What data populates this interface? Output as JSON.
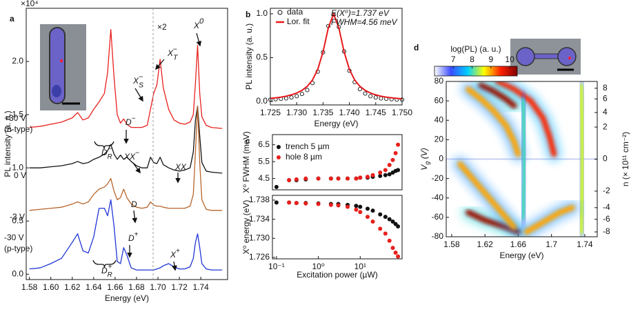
{
  "chart_data": [
    {
      "type": "line",
      "panel_label": "a",
      "y_multiplier": "×10⁴",
      "xlabel": "Energy (eV)",
      "ylabel": "PL intensity (a. u.)",
      "xlim": [
        1.577,
        1.765
      ],
      "xticks": [
        1.58,
        {
          "value": 1.6,
          "label": "1.60"
        },
        1.62,
        1.64,
        1.66,
        1.68,
        {
          "value": 1.7,
          "label": "1.70"
        },
        1.72,
        1.74
      ],
      "ylim": [
        -0.05,
        2.5
      ],
      "yticks": [
        {
          "value": 0,
          "label": "0.0"
        },
        0.5,
        {
          "value": 1,
          "label": "1.0"
        },
        1.5,
        {
          "value": 2,
          "label": "2.0"
        }
      ],
      "x": [
        1.58,
        1.59,
        1.6,
        1.61,
        1.62,
        1.625,
        1.63,
        1.635,
        1.64,
        1.645,
        1.65,
        1.653,
        1.656,
        1.659,
        1.662,
        1.665,
        1.668,
        1.671,
        1.675,
        1.68,
        1.685,
        1.69,
        1.693,
        1.696,
        1.699,
        1.702,
        1.705,
        1.71,
        1.715,
        1.72,
        1.725,
        1.73,
        1.733,
        1.735,
        1.737,
        1.739,
        1.741,
        1.745,
        1.75,
        1.76
      ],
      "series": [
        {
          "name": "+30 V",
          "color": "#e8201c",
          "values": [
            1.38,
            1.39,
            1.41,
            1.43,
            1.47,
            1.52,
            1.45,
            1.47,
            1.55,
            1.62,
            1.7,
            1.9,
            2.3,
            1.85,
            1.5,
            1.42,
            1.46,
            1.41,
            1.38,
            1.38,
            1.38,
            1.4,
            1.55,
            1.7,
            1.78,
            2.02,
            1.75,
            1.55,
            1.45,
            1.42,
            1.41,
            1.43,
            1.5,
            1.8,
            2.15,
            1.7,
            1.48,
            1.4,
            1.38,
            1.37
          ]
        },
        {
          "name": "0 V",
          "color": "#111111",
          "values": [
            1.0,
            1.0,
            1.01,
            1.02,
            1.04,
            1.06,
            1.04,
            1.05,
            1.08,
            1.1,
            1.13,
            1.16,
            1.22,
            1.13,
            1.08,
            1.12,
            1.08,
            1.1,
            1.06,
            1.02,
            1.0,
            1.0,
            1.1,
            1.05,
            1.04,
            1.1,
            1.03,
            1.0,
            0.98,
            0.97,
            0.98,
            1.0,
            1.15,
            1.45,
            1.58,
            1.3,
            1.05,
            0.97,
            0.96,
            0.95
          ]
        },
        {
          "name": "-3 V",
          "color": "#b8642a",
          "values": [
            0.6,
            0.61,
            0.62,
            0.63,
            0.66,
            0.68,
            0.66,
            0.68,
            0.75,
            0.8,
            0.82,
            0.85,
            0.9,
            0.78,
            0.7,
            0.72,
            0.8,
            0.72,
            0.66,
            0.63,
            0.62,
            0.63,
            0.68,
            0.65,
            0.64,
            0.64,
            0.63,
            0.62,
            0.62,
            0.62,
            0.62,
            0.64,
            0.75,
            1.15,
            1.58,
            1.05,
            0.7,
            0.61,
            0.6,
            0.6
          ]
        },
        {
          "name": "-30 V",
          "color": "#1f35d6",
          "values": [
            0.05,
            0.06,
            0.1,
            0.15,
            0.3,
            0.38,
            0.22,
            0.2,
            0.35,
            0.62,
            0.62,
            0.55,
            0.7,
            0.45,
            0.12,
            0.1,
            0.25,
            0.18,
            0.06,
            0.04,
            0.04,
            0.04,
            0.04,
            0.04,
            0.05,
            0.06,
            0.08,
            0.1,
            0.07,
            0.05,
            0.05,
            0.07,
            0.15,
            0.3,
            0.38,
            0.25,
            0.1,
            0.05,
            0.04,
            0.04
          ]
        }
      ],
      "annotations": [
        {
          "text": "×2"
        },
        {
          "text": "X",
          "sup": "0"
        },
        {
          "text": "X",
          "sub": "T",
          "sup": "−"
        },
        {
          "text": "X",
          "sub": "S",
          "sup": "−"
        },
        {
          "text": "D",
          "sup": "−"
        },
        {
          "text": "D",
          "sub": "R",
          "sup": "−"
        },
        {
          "text": "XX",
          "sup": "−"
        },
        {
          "text": "XX"
        },
        {
          "text": "D"
        },
        {
          "text": "D",
          "sup": "+"
        },
        {
          "text": "X",
          "sup": "+"
        },
        {
          "text": "D",
          "sub": "R",
          "sup": "+"
        },
        {
          "text": "(n-type)"
        },
        {
          "text": "(p-type)"
        }
      ]
    },
    {
      "type": "line",
      "panel_label": "b",
      "xlabel": "Energy (eV)",
      "ylabel": "PL intensity (a. u.)",
      "xlim": [
        1.725,
        1.75
      ],
      "xticks": [
        1.725,
        {
          "value": 1.73,
          "label": "1.730"
        },
        1.735,
        {
          "value": 1.74,
          "label": "1.740"
        },
        1.745,
        {
          "value": 1.75,
          "label": "1.750"
        }
      ],
      "ylim": [
        -0.04,
        1.063
      ],
      "yticks": [
        {
          "value": 0,
          "label": "0.0"
        },
        0.5,
        {
          "value": 1,
          "label": "1.0"
        }
      ],
      "x": [
        1.725,
        1.726,
        1.727,
        1.728,
        1.729,
        1.73,
        1.731,
        1.732,
        1.733,
        1.734,
        1.735,
        1.736,
        1.737,
        1.738,
        1.739,
        1.74,
        1.741,
        1.742,
        1.743,
        1.744,
        1.745,
        1.746,
        1.747,
        1.748,
        1.749,
        1.75
      ],
      "series": [
        {
          "name": "data",
          "color": "#111111",
          "marker": "circle",
          "values": [
            0.02,
            0.025,
            0.03,
            0.035,
            0.045,
            0.06,
            0.085,
            0.13,
            0.21,
            0.34,
            0.56,
            0.86,
            0.99,
            0.85,
            0.57,
            0.35,
            0.22,
            0.14,
            0.09,
            0.06,
            0.045,
            0.035,
            0.03,
            0.025,
            0.02,
            0.02
          ]
        },
        {
          "name": "Lor. fit",
          "color": "#e8181c",
          "values": [
            0.035,
            0.041,
            0.049,
            0.06,
            0.075,
            0.096,
            0.126,
            0.172,
            0.245,
            0.366,
            0.565,
            0.839,
            1.0,
            0.839,
            0.565,
            0.366,
            0.245,
            0.172,
            0.126,
            0.096,
            0.075,
            0.06,
            0.049,
            0.041,
            0.035,
            0.03
          ]
        }
      ],
      "annotations": [
        {
          "text": "E(X⁰)=1.737 eV"
        },
        {
          "text": "FWHM=4.56 meV"
        }
      ]
    },
    {
      "type": "scatter",
      "panel_label": "c",
      "xscale": "log",
      "ylabel": "X⁰ FWHM (meV)",
      "xlim": [
        0.08,
        100
      ],
      "ylim": [
        3.83,
        7.1
      ],
      "yticks": [
        4.5,
        5.5,
        6.5
      ],
      "x": [
        0.1,
        0.2,
        0.3,
        0.5,
        1,
        2,
        3,
        5,
        8,
        10,
        15,
        20,
        30,
        40,
        50,
        60,
        70,
        80
      ],
      "series": [
        {
          "name": "trench 5 µm",
          "color": "#111111",
          "values": [
            4.0,
            4.4,
            4.4,
            4.45,
            4.5,
            4.5,
            4.5,
            4.5,
            4.5,
            4.55,
            4.55,
            4.6,
            4.65,
            4.7,
            4.75,
            4.85,
            4.95,
            5.0
          ]
        },
        {
          "name": "hole 8 µm",
          "color": "#e8201c",
          "values": [
            null,
            4.4,
            4.45,
            4.5,
            4.5,
            4.5,
            4.5,
            4.5,
            4.5,
            4.55,
            4.6,
            4.7,
            4.85,
            5.0,
            5.3,
            5.6,
            6.0,
            6.5
          ]
        }
      ]
    },
    {
      "type": "scatter",
      "xscale": "log",
      "xlabel": "Excitation power (µW)",
      "ylabel": "X⁰ energy (eV)",
      "xlim": [
        0.08,
        100
      ],
      "xticks": [
        {
          "value": 0.1,
          "label": "10⁻¹"
        },
        {
          "value": 1,
          "label": "10⁰"
        },
        {
          "value": 10,
          "label": "10¹"
        }
      ],
      "ylim": [
        1.7257,
        1.739
      ],
      "yticks": [
        1.726,
        {
          "value": 1.73,
          "label": "1.730"
        },
        1.734,
        1.738
      ],
      "x": [
        0.1,
        0.2,
        0.3,
        0.5,
        1,
        2,
        3,
        5,
        8,
        10,
        15,
        20,
        30,
        40,
        50,
        60,
        70,
        80
      ],
      "series": [
        {
          "color": "#111111",
          "values": [
            1.7375,
            1.7375,
            1.7374,
            1.7374,
            1.7373,
            1.7372,
            1.7372,
            1.737,
            1.7368,
            1.7366,
            1.7362,
            1.7358,
            1.735,
            1.7345,
            1.734,
            1.7335,
            1.733,
            1.7325
          ]
        },
        {
          "color": "#e8201c",
          "values": [
            null,
            1.7375,
            1.7374,
            1.7373,
            1.7372,
            1.737,
            1.7369,
            1.7366,
            1.736,
            1.7355,
            1.7345,
            1.7335,
            1.732,
            1.731,
            1.7295,
            1.728,
            1.727,
            1.7262
          ]
        }
      ]
    },
    {
      "type": "heatmap",
      "panel_label": "d",
      "xlabel": "Energy (eV)",
      "ylabel": {
        "text": "V",
        "sub": "g",
        "after": " (V)"
      },
      "y2label": "n (× 10¹¹ cm⁻²)",
      "colorbar_label": "log(PL) (a. u.)",
      "colormap": [
        "#ffffff",
        "#3a4cff",
        "#00d0ff",
        "#ffff00",
        "#ff2000",
        "#800000"
      ],
      "clim": [
        6.0,
        10.4
      ],
      "cticks": [
        7,
        8,
        9,
        10
      ],
      "xlim": [
        1.5734,
        1.755
      ],
      "xticks": [
        1.58,
        1.62,
        1.66,
        1.7,
        1.74
      ],
      "ylim": [
        -80,
        80
      ],
      "yticks": [
        -80,
        -60,
        -40,
        -20,
        0,
        20,
        40,
        60,
        80
      ],
      "y2ticks": [
        8,
        6,
        4,
        2,
        0,
        -2,
        -4,
        -6,
        -8
      ],
      "y2tick_vg": [
        73,
        62,
        48,
        33,
        0,
        -33,
        -50,
        -62,
        -75
      ],
      "ridges": [
        {
          "level": 9.5,
          "energy": [
            1.635,
            1.655,
            1.675,
            1.69,
            1.698,
            1.703
          ],
          "vg": [
            80,
            72,
            60,
            42,
            22,
            5
          ]
        },
        {
          "level": 10.2,
          "energy": [
            1.615,
            1.63,
            1.645,
            1.655
          ],
          "vg": [
            76,
            70,
            62,
            55
          ]
        },
        {
          "level": 9.0,
          "energy": [
            1.6,
            1.615,
            1.63,
            1.645,
            1.655,
            1.66
          ],
          "vg": [
            72,
            62,
            50,
            35,
            18,
            5
          ]
        },
        {
          "level": 8.5,
          "energy": [
            1.735,
            1.737,
            1.738,
            1.737,
            1.735
          ],
          "vg": [
            75,
            40,
            0,
            -40,
            -75
          ]
        },
        {
          "level": 10.2,
          "energy": [
            1.6,
            1.62,
            1.645,
            1.66
          ],
          "vg": [
            -55,
            -63,
            -70,
            -75
          ]
        },
        {
          "level": 9.0,
          "energy": [
            1.59,
            1.61,
            1.63,
            1.645,
            1.655
          ],
          "vg": [
            -5,
            -25,
            -45,
            -60,
            -70
          ]
        },
        {
          "level": 9.0,
          "energy": [
            1.67,
            1.69,
            1.71,
            1.725
          ],
          "vg": [
            -75,
            -65,
            -55,
            -50
          ]
        },
        {
          "level": 8.0,
          "energy": [
            1.665,
            1.668,
            1.668,
            1.665
          ],
          "vg": [
            60,
            20,
            -20,
            -60
          ]
        }
      ]
    }
  ]
}
